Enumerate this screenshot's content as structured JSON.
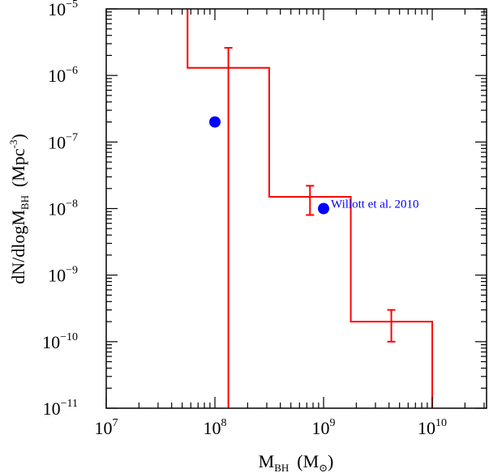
{
  "chart_data": {
    "type": "line",
    "xscale": "log",
    "yscale": "log",
    "xlim": [
      10000000.0,
      31600000000.0
    ],
    "ylim": [
      1e-11,
      1e-05
    ],
    "xlabel": {
      "main": "M",
      "sub": "BH",
      "unit_main": "(M",
      "unit_sub": "⊙",
      "unit_end": ")"
    },
    "ylabel": {
      "main": "dN/dlogM",
      "sub": "BH",
      "unit_main": "(Mpc",
      "unit_sup": "-3",
      "unit_end": ")"
    },
    "xticks": [
      {
        "value": 10000000.0,
        "base": "10",
        "exp": "7"
      },
      {
        "value": 100000000.0,
        "base": "10",
        "exp": "8"
      },
      {
        "value": 1000000000.0,
        "base": "10",
        "exp": "9"
      },
      {
        "value": 10000000000.0,
        "base": "10",
        "exp": "10"
      }
    ],
    "yticks": [
      {
        "value": 1e-05,
        "base": "10",
        "exp": "−5"
      },
      {
        "value": 1e-06,
        "base": "10",
        "exp": "−6"
      },
      {
        "value": 1e-07,
        "base": "10",
        "exp": "−7"
      },
      {
        "value": 1e-08,
        "base": "10",
        "exp": "−8"
      },
      {
        "value": 1e-09,
        "base": "10",
        "exp": "−9"
      },
      {
        "value": 1e-10,
        "base": "10",
        "exp": "−10"
      },
      {
        "value": 1e-11,
        "base": "10",
        "exp": "−11"
      }
    ],
    "grid": false,
    "series": [
      {
        "kind": "step-histogram",
        "color": "#ff0000",
        "bin_edges": [
          56000000.0,
          316000000.0,
          1780000000.0,
          10000000000.0
        ],
        "values": [
          1.3e-06,
          1.5e-08,
          2e-10
        ],
        "errorbars": [
          {
            "x": 133000000.0,
            "y": 1.3e-06,
            "ylow": 1e-11,
            "yhigh": 2.6e-06
          },
          {
            "x": 750000000.0,
            "y": 1.5e-08,
            "ylow": 8e-09,
            "yhigh": 2.2e-08
          },
          {
            "x": 4200000000.0,
            "y": 2e-10,
            "ylow": 1e-10,
            "yhigh": 3e-10
          }
        ]
      },
      {
        "kind": "points",
        "color": "#0000ff",
        "points": [
          {
            "x": 100000000.0,
            "y": 2e-07
          },
          {
            "x": 1000000000.0,
            "y": 1e-08
          }
        ],
        "annotation": {
          "text": "Willott et al. 2010",
          "x": 1000000000.0,
          "y": 1e-08
        }
      }
    ]
  }
}
